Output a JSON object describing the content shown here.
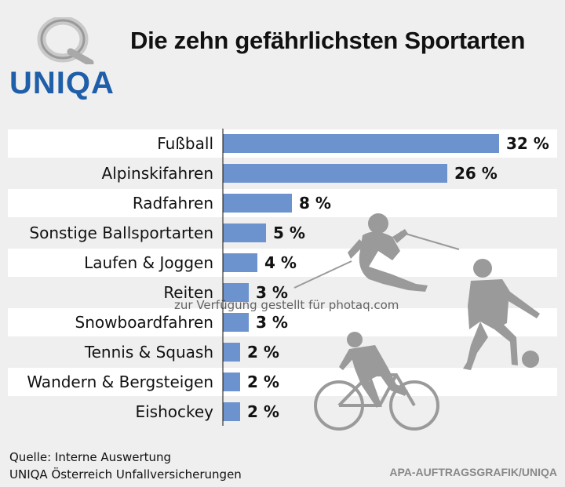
{
  "brand": {
    "name": "UNIQA",
    "color": "#1f5ea8"
  },
  "title": "Die zehn gefährlichsten Sportarten",
  "chart_data": {
    "type": "bar",
    "orientation": "horizontal",
    "categories": [
      "Fußball",
      "Alpinskifahren",
      "Radfahren",
      "Sonstige Ballsportarten",
      "Laufen & Joggen",
      "Reiten",
      "Snowboardfahren",
      "Tennis & Squash",
      "Wandern & Bergsteigen",
      "Eishockey"
    ],
    "values": [
      32,
      26,
      8,
      5,
      4,
      3,
      3,
      2,
      2,
      2
    ],
    "data_labels": [
      "32 %",
      "26 %",
      "8 %",
      "5 %",
      "4 %",
      "3 %",
      "3 %",
      "2 %",
      "2 %",
      "2 %"
    ],
    "unit": "%",
    "bar_color": "#6d93cf",
    "row_stripe_color": "#ffffff",
    "grid": false
  },
  "watermark": "zur Verfügung gestellt für photaq.com",
  "source": [
    "Quelle: Interne Auswertung",
    "UNIQA Österreich Unfallversicherungen"
  ],
  "credit": "APA-AUFTRAGSGRAFIK/UNIQA",
  "illustrations": [
    "skier-silhouette",
    "soccer-player-silhouette",
    "cyclist-silhouette"
  ]
}
